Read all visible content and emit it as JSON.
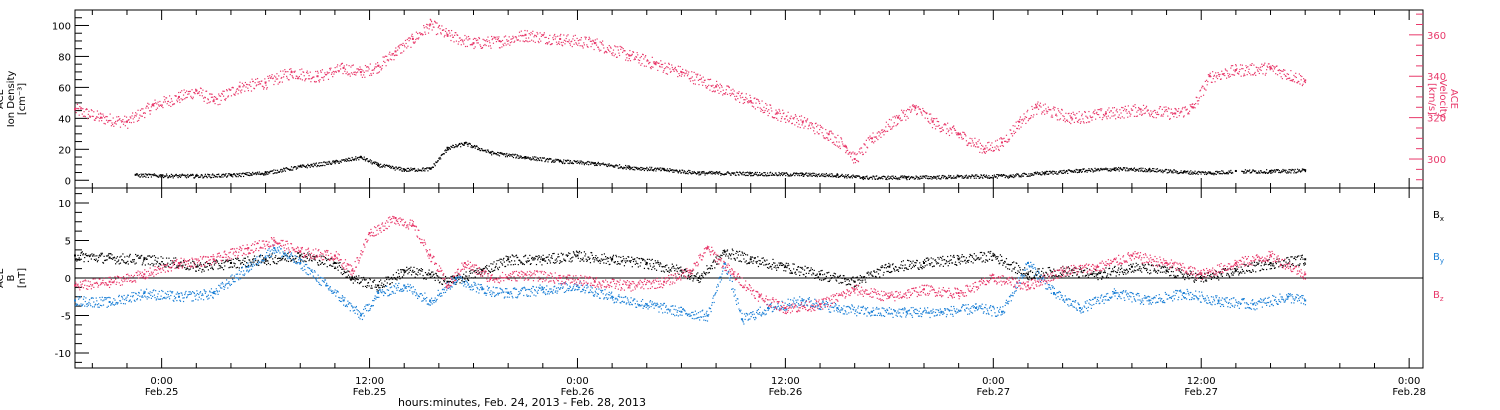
{
  "chart_data": [
    {
      "type": "scatter",
      "panel": "top",
      "xlabel": "hours:minutes, Feb. 24, 2013 - Feb. 28, 2013",
      "x_tick_labels": [
        {
          "hour": 24,
          "time": "0:00",
          "date": "Feb.25"
        },
        {
          "hour": 36,
          "time": "12:00",
          "date": "Feb.25"
        },
        {
          "hour": 48,
          "time": "0:00",
          "date": "Feb.26"
        },
        {
          "hour": 60,
          "time": "12:00",
          "date": "Feb.26"
        },
        {
          "hour": 72,
          "time": "0:00",
          "date": "Feb.27"
        },
        {
          "hour": 84,
          "time": "12:00",
          "date": "Feb.27"
        },
        {
          "hour": 96,
          "time": "0:00",
          "date": "Feb.28"
        }
      ],
      "xlim_hours_from_feb24": [
        19.0,
        96.8
      ],
      "left_axis": {
        "label_lines": [
          "ACE",
          "Ion Density",
          "[cm⁻³]"
        ],
        "ylim": [
          -5,
          110
        ],
        "ticks": [
          0,
          20,
          40,
          60,
          80,
          100
        ],
        "tick_labels": [
          "0",
          "20",
          "40",
          "60",
          "80",
          "100"
        ]
      },
      "right_axis": {
        "label_lines": [
          "ACE",
          "Velocity",
          "[km/s]"
        ],
        "ylim": [
          286,
          372
        ],
        "ticks": [
          300,
          320,
          340,
          360
        ],
        "tick_labels": [
          "300",
          "320",
          "340",
          "360"
        ],
        "color": "#e8386a"
      },
      "series": [
        {
          "color": "#000000",
          "axis": "left",
          "points": [
            [
              22.5,
              3.5
            ],
            [
              24.0,
              3.2
            ],
            [
              26.0,
              3.0
            ],
            [
              28.0,
              3.5
            ],
            [
              30.0,
              5.0
            ],
            [
              32.0,
              9.0
            ],
            [
              34.0,
              12.0
            ],
            [
              35.5,
              15.0
            ],
            [
              36.5,
              10.0
            ],
            [
              38.0,
              7.0
            ],
            [
              39.5,
              7.5
            ],
            [
              40.5,
              21.0
            ],
            [
              41.5,
              24.0
            ],
            [
              43.0,
              18.0
            ],
            [
              45.0,
              15.0
            ],
            [
              47.0,
              12.5
            ],
            [
              49.0,
              11.0
            ],
            [
              51.0,
              8.5
            ],
            [
              53.0,
              7.0
            ],
            [
              55.0,
              5.0
            ],
            [
              58.0,
              4.5
            ],
            [
              61.0,
              4.0
            ],
            [
              63.0,
              3.5
            ],
            [
              64.5,
              2.0
            ],
            [
              67.0,
              2.0
            ],
            [
              70.0,
              2.5
            ],
            [
              73.0,
              3.0
            ],
            [
              75.0,
              5.0
            ],
            [
              77.0,
              6.5
            ],
            [
              79.0,
              7.5
            ],
            [
              81.0,
              7.0
            ],
            [
              83.0,
              5.5
            ],
            [
              84.5,
              5.0
            ],
            [
              86.0,
              6.0
            ],
            [
              88.0,
              6.0
            ],
            [
              90.0,
              6.5
            ]
          ]
        },
        {
          "color": "#e8386a",
          "axis": "right",
          "points": [
            [
              19.0,
              324
            ],
            [
              20.5,
              320
            ],
            [
              22.0,
              318
            ],
            [
              23.5,
              326
            ],
            [
              25.0,
              330
            ],
            [
              26.0,
              333
            ],
            [
              27.0,
              328
            ],
            [
              28.5,
              335
            ],
            [
              30.0,
              337
            ],
            [
              31.5,
              342
            ],
            [
              33.0,
              340
            ],
            [
              34.5,
              344
            ],
            [
              35.5,
              342
            ],
            [
              36.5,
              345
            ],
            [
              37.5,
              352
            ],
            [
              38.5,
              358
            ],
            [
              39.5,
              365
            ],
            [
              40.5,
              360
            ],
            [
              42.0,
              356
            ],
            [
              43.5,
              357
            ],
            [
              45.0,
              360
            ],
            [
              47.0,
              358
            ],
            [
              49.0,
              356
            ],
            [
              51.0,
              350
            ],
            [
              52.5,
              346
            ],
            [
              54.0,
              342
            ],
            [
              56.0,
              335
            ],
            [
              58.0,
              328
            ],
            [
              59.5,
              322
            ],
            [
              61.0,
              318
            ],
            [
              62.5,
              312
            ],
            [
              63.5,
              306
            ],
            [
              64.0,
              300
            ],
            [
              65.0,
              310
            ],
            [
              66.5,
              320
            ],
            [
              67.5,
              325
            ],
            [
              68.5,
              318
            ],
            [
              70.0,
              312
            ],
            [
              71.5,
              305
            ],
            [
              72.5,
              308
            ],
            [
              73.5,
              318
            ],
            [
              74.5,
              325
            ],
            [
              76.5,
              320
            ],
            [
              78.5,
              322
            ],
            [
              80.5,
              324
            ],
            [
              82.5,
              322
            ],
            [
              83.5,
              325
            ],
            [
              84.5,
              340
            ],
            [
              86.0,
              343
            ],
            [
              88.0,
              344
            ],
            [
              90.0,
              338
            ]
          ]
        }
      ]
    },
    {
      "type": "scatter",
      "panel": "bottom",
      "left_axis": {
        "label_lines": [
          "ACE",
          "B",
          "[nT]"
        ],
        "ylim": [
          -12,
          12
        ],
        "ticks": [
          -10,
          -5,
          0,
          5,
          10
        ],
        "tick_labels": [
          "-10",
          "-5",
          "0",
          "5",
          "10"
        ]
      },
      "zero_line": true,
      "series": [
        {
          "name": "B",
          "subscript": "x",
          "color": "#000000",
          "points": [
            [
              19.0,
              3.0
            ],
            [
              21.0,
              2.7
            ],
            [
              23.0,
              2.5
            ],
            [
              25.0,
              2.0
            ],
            [
              26.0,
              1.5
            ],
            [
              28.0,
              2.0
            ],
            [
              30.0,
              2.5
            ],
            [
              32.0,
              3.0
            ],
            [
              34.0,
              2.0
            ],
            [
              35.0,
              0.0
            ],
            [
              36.5,
              -1.0
            ],
            [
              38.0,
              1.0
            ],
            [
              39.5,
              0.5
            ],
            [
              40.5,
              -0.5
            ],
            [
              42.5,
              1.0
            ],
            [
              44.0,
              2.5
            ],
            [
              46.0,
              2.5
            ],
            [
              48.0,
              3.0
            ],
            [
              50.0,
              2.5
            ],
            [
              52.0,
              2.0
            ],
            [
              54.0,
              1.0
            ],
            [
              55.0,
              0.0
            ],
            [
              56.5,
              3.5
            ],
            [
              58.0,
              2.5
            ],
            [
              60.0,
              1.5
            ],
            [
              62.0,
              0.5
            ],
            [
              64.0,
              -0.5
            ],
            [
              66.0,
              1.5
            ],
            [
              68.0,
              2.0
            ],
            [
              70.0,
              2.5
            ],
            [
              72.0,
              3.0
            ],
            [
              74.0,
              0.5
            ],
            [
              76.0,
              1.0
            ],
            [
              78.0,
              0.5
            ],
            [
              80.0,
              1.5
            ],
            [
              82.0,
              1.0
            ],
            [
              84.0,
              0.0
            ],
            [
              86.0,
              1.0
            ],
            [
              88.0,
              2.0
            ],
            [
              90.0,
              2.5
            ]
          ]
        },
        {
          "name": "B",
          "subscript": "y",
          "color": "#1a7fd6",
          "points": [
            [
              19.0,
              -3.0
            ],
            [
              21.0,
              -3.2
            ],
            [
              23.0,
              -2.0
            ],
            [
              25.0,
              -2.5
            ],
            [
              27.0,
              -2.0
            ],
            [
              29.0,
              1.5
            ],
            [
              30.5,
              4.0
            ],
            [
              32.0,
              2.0
            ],
            [
              33.5,
              -1.0
            ],
            [
              34.5,
              -3.0
            ],
            [
              35.5,
              -5.0
            ],
            [
              36.5,
              -2.0
            ],
            [
              38.0,
              -1.0
            ],
            [
              39.5,
              -3.0
            ],
            [
              41.0,
              0.0
            ],
            [
              42.5,
              -1.5
            ],
            [
              44.0,
              -2.0
            ],
            [
              46.0,
              -1.5
            ],
            [
              48.0,
              -1.0
            ],
            [
              50.0,
              -2.5
            ],
            [
              52.0,
              -3.5
            ],
            [
              54.0,
              -4.5
            ],
            [
              55.5,
              -5.0
            ],
            [
              56.5,
              2.0
            ],
            [
              57.5,
              -5.5
            ],
            [
              59.0,
              -4.0
            ],
            [
              61.0,
              -3.0
            ],
            [
              63.0,
              -4.0
            ],
            [
              65.0,
              -4.5
            ],
            [
              67.0,
              -4.5
            ],
            [
              69.0,
              -4.5
            ],
            [
              71.0,
              -4.0
            ],
            [
              72.5,
              -4.5
            ],
            [
              74.0,
              2.0
            ],
            [
              75.5,
              -2.0
            ],
            [
              77.0,
              -4.0
            ],
            [
              79.0,
              -2.0
            ],
            [
              81.0,
              -3.0
            ],
            [
              83.0,
              -2.0
            ],
            [
              85.0,
              -3.0
            ],
            [
              87.0,
              -3.5
            ],
            [
              89.0,
              -2.5
            ],
            [
              90.0,
              -3.0
            ]
          ]
        },
        {
          "name": "B",
          "subscript": "z",
          "color": "#e8386a",
          "points": [
            [
              19.0,
              -1.0
            ],
            [
              21.0,
              -0.5
            ],
            [
              23.0,
              0.5
            ],
            [
              25.0,
              2.0
            ],
            [
              27.0,
              2.5
            ],
            [
              29.0,
              4.0
            ],
            [
              30.5,
              5.0
            ],
            [
              32.0,
              3.5
            ],
            [
              34.0,
              3.0
            ],
            [
              35.0,
              1.0
            ],
            [
              36.0,
              6.0
            ],
            [
              37.5,
              8.0
            ],
            [
              38.5,
              7.0
            ],
            [
              39.5,
              3.0
            ],
            [
              40.5,
              -1.0
            ],
            [
              41.5,
              2.0
            ],
            [
              43.0,
              0.0
            ],
            [
              45.0,
              0.5
            ],
            [
              47.0,
              0.0
            ],
            [
              49.0,
              -0.5
            ],
            [
              51.0,
              -1.0
            ],
            [
              53.0,
              -0.5
            ],
            [
              54.5,
              1.0
            ],
            [
              55.5,
              4.0
            ],
            [
              57.0,
              0.5
            ],
            [
              58.5,
              -2.5
            ],
            [
              60.0,
              -4.0
            ],
            [
              62.0,
              -3.5
            ],
            [
              64.0,
              -1.5
            ],
            [
              66.0,
              -2.5
            ],
            [
              68.0,
              -1.5
            ],
            [
              70.0,
              -2.0
            ],
            [
              72.0,
              0.0
            ],
            [
              74.0,
              -1.0
            ],
            [
              76.0,
              1.0
            ],
            [
              78.0,
              1.5
            ],
            [
              80.0,
              3.0
            ],
            [
              82.0,
              2.0
            ],
            [
              84.0,
              0.5
            ],
            [
              86.0,
              2.0
            ],
            [
              88.0,
              3.0
            ],
            [
              90.0,
              0.5
            ]
          ]
        }
      ]
    }
  ]
}
